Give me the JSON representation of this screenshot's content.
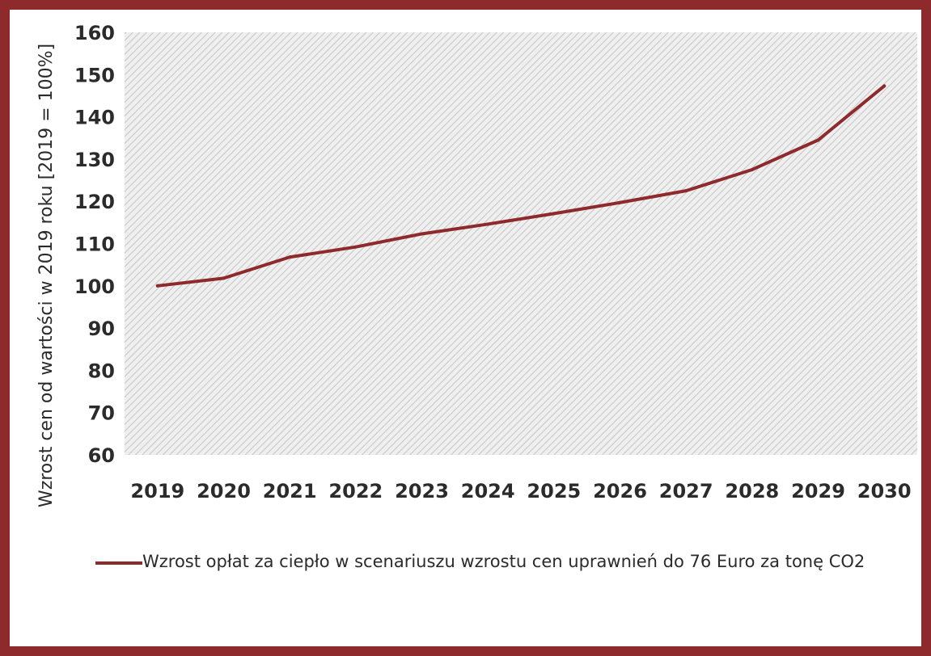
{
  "chart_data": {
    "type": "line",
    "title": "",
    "xlabel": "",
    "ylabel": "Wzrost cen od wartości w 2019 roku [2019 = 100%]",
    "ylim": [
      60,
      160
    ],
    "yticks": [
      60,
      70,
      80,
      90,
      100,
      110,
      120,
      130,
      140,
      150,
      160
    ],
    "categories": [
      "2019",
      "2020",
      "2021",
      "2022",
      "2023",
      "2024",
      "2025",
      "2026",
      "2027",
      "2028",
      "2029",
      "2030"
    ],
    "series": [
      {
        "name": "Wzrost opłat za ciepło w scenariuszu wzrostu cen uprawnień do 76 Euro za tonę CO2",
        "values": [
          100,
          101.8,
          106.8,
          109.2,
          112.3,
          114.6,
          117.1,
          119.7,
          122.5,
          127.5,
          134.5,
          147.3
        ]
      }
    ],
    "grid": "hatched plot area",
    "legend_position": "bottom"
  },
  "colors": {
    "frame": "#8e2a2c",
    "series_line": "#8e2a2c",
    "plot_background": "#ebebeb",
    "hatch": "#c4c4c4",
    "text": "#2b2b2b"
  }
}
